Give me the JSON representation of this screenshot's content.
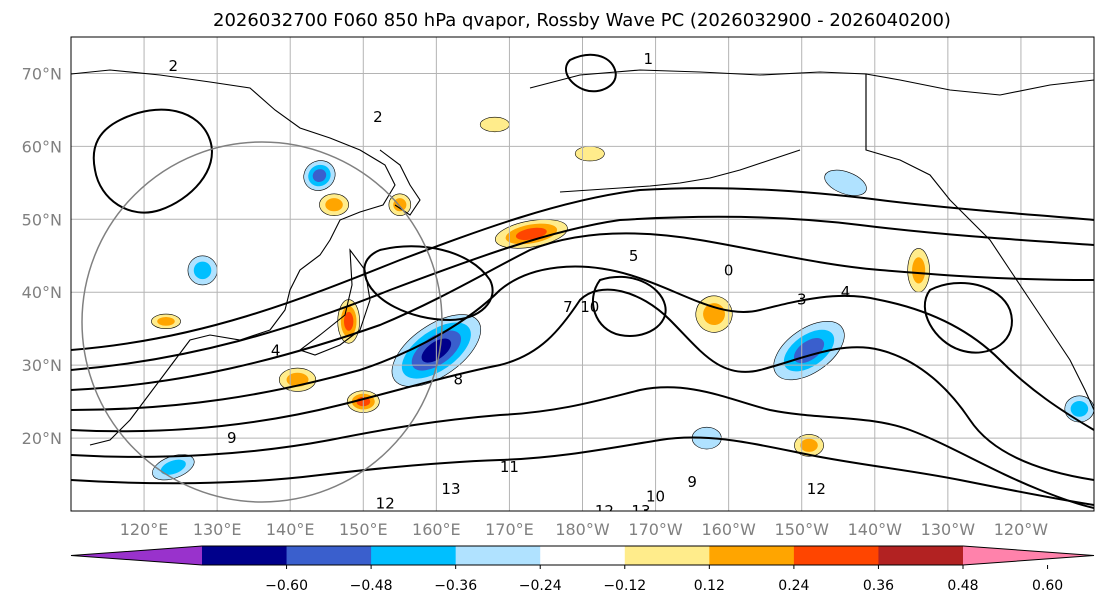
{
  "title": "2026032700 F060 850 hPa qvapor, Rossby Wave PC (2026032900 - 2026040200)",
  "lat_labels": [
    "70°N",
    "60°N",
    "50°N",
    "40°N",
    "30°N",
    "20°N"
  ],
  "lon_labels": [
    "120°E",
    "130°E",
    "140°E",
    "150°E",
    "160°E",
    "170°E",
    "180°W",
    "170°W",
    "160°W",
    "150°W",
    "140°W",
    "130°W",
    "120°W"
  ],
  "colorbar": {
    "ticks": [
      "−0.60",
      "−0.48",
      "−0.36",
      "−0.24",
      "−0.12",
      "0.12",
      "0.24",
      "0.36",
      "0.48",
      "0.60"
    ],
    "colors": [
      "#9932cc",
      "#00008b",
      "#3a5fcd",
      "#00bfff",
      "#b0e2ff",
      "#ffffff",
      "#ffec8b",
      "#ffa500",
      "#ff4500",
      "#b22222",
      "#ff82ab"
    ]
  },
  "contour_labels": [
    {
      "text": "2",
      "lat": 71,
      "lon": 124
    },
    {
      "text": "1",
      "lat": 72,
      "lon": 189
    },
    {
      "text": "2",
      "lat": 64,
      "lon": 152
    },
    {
      "text": "1",
      "lat": 70,
      "lon": 260
    },
    {
      "text": "1",
      "lat": 60,
      "lon": 259
    },
    {
      "text": "5",
      "lat": 45,
      "lon": 187
    },
    {
      "text": "0",
      "lat": 43,
      "lon": 200
    },
    {
      "text": "3",
      "lat": 39,
      "lon": 210
    },
    {
      "text": "4",
      "lat": 40,
      "lon": 216
    },
    {
      "text": "7",
      "lat": 38,
      "lon": 178
    },
    {
      "text": "10",
      "lat": 38,
      "lon": 181
    },
    {
      "text": "4",
      "lat": 32,
      "lon": 138
    },
    {
      "text": "8",
      "lat": 28,
      "lon": 163
    },
    {
      "text": "11",
      "lat": 16,
      "lon": 170
    },
    {
      "text": "13",
      "lat": 13,
      "lon": 162
    },
    {
      "text": "12",
      "lat": 11,
      "lon": 153
    },
    {
      "text": "12",
      "lat": 10,
      "lon": 183
    },
    {
      "text": "13",
      "lat": 10,
      "lon": 188
    },
    {
      "text": "10",
      "lat": 12,
      "lon": 190
    },
    {
      "text": "9",
      "lat": 14,
      "lon": 195
    },
    {
      "text": "12",
      "lat": 13,
      "lon": 212
    },
    {
      "text": "3",
      "lat": 20,
      "lon": 252
    },
    {
      "text": "13",
      "lat": 11,
      "lon": 259
    },
    {
      "text": "9",
      "lat": 20,
      "lon": 132
    }
  ],
  "anomaly_patches": [
    {
      "lat": 32,
      "lon": 160,
      "rx": 7,
      "ry": 3.5,
      "rot": -35,
      "value": -0.5
    },
    {
      "lat": 32,
      "lon": 211,
      "rx": 5.5,
      "ry": 3,
      "rot": -35,
      "value": -0.45
    },
    {
      "lat": 56,
      "lon": 144,
      "rx": 2.2,
      "ry": 2,
      "rot": -30,
      "value": -0.4
    },
    {
      "lat": 43,
      "lon": 128,
      "rx": 2,
      "ry": 2,
      "rot": 0,
      "value": -0.3
    },
    {
      "lat": 24,
      "lon": 248,
      "rx": 2,
      "ry": 1.8,
      "rot": 0,
      "value": -0.3
    },
    {
      "lat": 55,
      "lon": 216,
      "rx": 3,
      "ry": 1.5,
      "rot": 20,
      "value": -0.2
    },
    {
      "lat": 20,
      "lon": 197,
      "rx": 2,
      "ry": 1.5,
      "rot": 0,
      "value": -0.2
    },
    {
      "lat": 16,
      "lon": 124,
      "rx": 3,
      "ry": 1.5,
      "rot": -20,
      "value": -0.25
    },
    {
      "lat": 48,
      "lon": 173,
      "rx": 5,
      "ry": 1.8,
      "rot": -10,
      "value": 0.45
    },
    {
      "lat": 36,
      "lon": 148,
      "rx": 1.5,
      "ry": 3,
      "rot": 0,
      "value": 0.4
    },
    {
      "lat": 25,
      "lon": 150,
      "rx": 2.2,
      "ry": 1.5,
      "rot": 0,
      "value": 0.4
    },
    {
      "lat": 28,
      "lon": 141,
      "rx": 2.5,
      "ry": 1.6,
      "rot": 0,
      "value": 0.35
    },
    {
      "lat": 43,
      "lon": 226,
      "rx": 1.5,
      "ry": 3,
      "rot": 0,
      "value": 0.35
    },
    {
      "lat": 47,
      "lon": 259,
      "rx": 3,
      "ry": 1.5,
      "rot": 0,
      "value": 0.35
    },
    {
      "lat": 52,
      "lon": 146,
      "rx": 2,
      "ry": 1.5,
      "rot": 0,
      "value": 0.3
    },
    {
      "lat": 52,
      "lon": 155,
      "rx": 1.5,
      "ry": 1.5,
      "rot": 0,
      "value": 0.3
    },
    {
      "lat": 37,
      "lon": 198,
      "rx": 2.5,
      "ry": 2.5,
      "rot": -30,
      "value": 0.3
    },
    {
      "lat": 19,
      "lon": 211,
      "rx": 2,
      "ry": 1.5,
      "rot": 0,
      "value": 0.3
    },
    {
      "lat": 62,
      "lon": 257,
      "rx": 2,
      "ry": 1,
      "rot": 0,
      "value": 0.3
    },
    {
      "lat": 35,
      "lon": 255,
      "rx": 1.5,
      "ry": 2,
      "rot": 0,
      "value": 0.3
    },
    {
      "lat": 36,
      "lon": 123,
      "rx": 2,
      "ry": 1,
      "rot": 0,
      "value": 0.25
    },
    {
      "lat": 63,
      "lon": 168,
      "rx": 2,
      "ry": 1,
      "rot": 0,
      "value": 0.2
    },
    {
      "lat": 59,
      "lon": 181,
      "rx": 2,
      "ry": 1,
      "rot": 0,
      "value": 0.2
    }
  ]
}
